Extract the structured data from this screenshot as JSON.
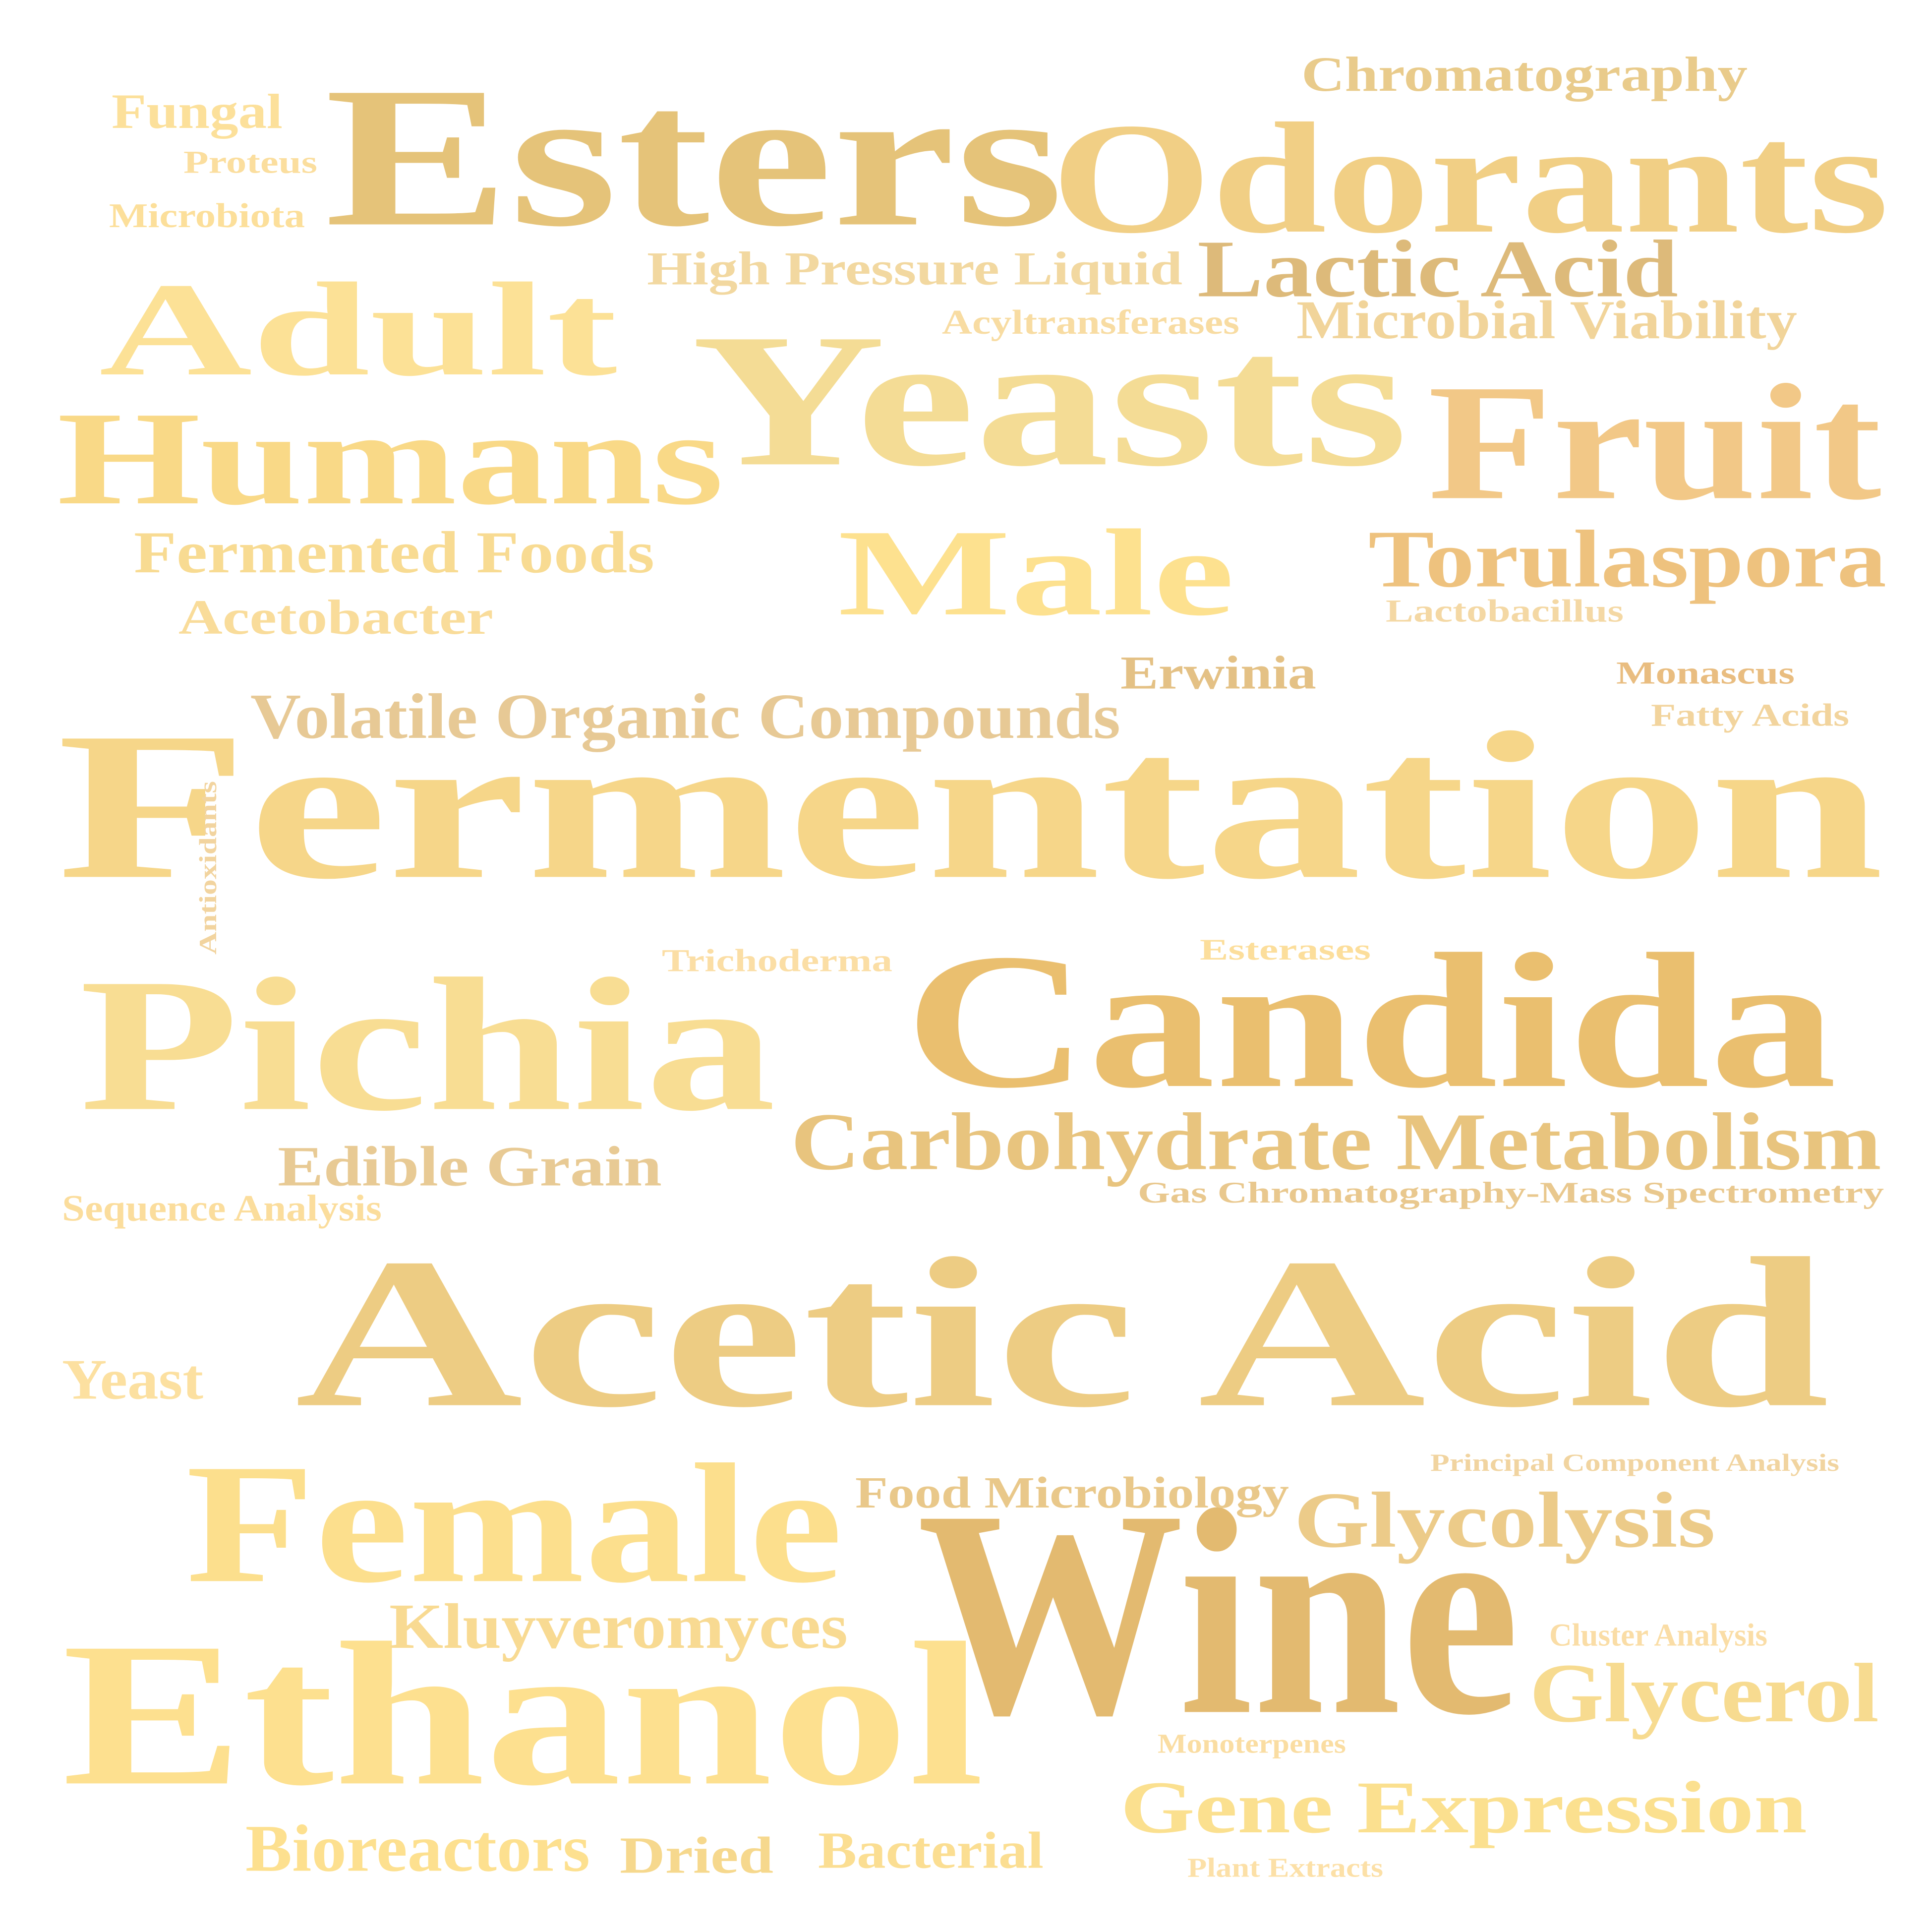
{
  "words": [
    {
      "text": "Fermentation",
      "color": "#F6D689"
    },
    {
      "text": "Acetic Acid",
      "color": "#EDCC83"
    },
    {
      "text": "Candida",
      "color": "#EABF6F"
    },
    {
      "text": "Yeasts",
      "color": "#F4DC95"
    },
    {
      "text": "Odorants",
      "color": "#F1CF85"
    },
    {
      "text": "Esters",
      "color": "#E5C379"
    },
    {
      "text": "Ethanol",
      "color": "#FDE08F"
    },
    {
      "text": "Wine",
      "color": "#E3BA70"
    },
    {
      "text": "Pichia",
      "color": "#F8DD93"
    },
    {
      "text": "Fruit",
      "color": "#F2C887"
    },
    {
      "text": "Female",
      "color": "#FCDF8D"
    },
    {
      "text": "Humans",
      "color": "#F9D987"
    },
    {
      "text": "Adult",
      "color": "#FCE196"
    },
    {
      "text": "Male",
      "color": "#FDE18F"
    },
    {
      "text": "Carbohydrate Metabolism",
      "color": "#E8C47E"
    },
    {
      "text": "Torulaspora",
      "color": "#EEC27E"
    },
    {
      "text": "Lactic Acid",
      "color": "#DDBA7A"
    },
    {
      "text": "Gene Expression",
      "color": "#FBE08F"
    },
    {
      "text": "Glycerol",
      "color": "#F7DB90"
    },
    {
      "text": "Glycolysis",
      "color": "#ECCB89"
    },
    {
      "text": "Volatile Organic Compounds",
      "color": "#E7C995"
    },
    {
      "text": "Kluyveromyces",
      "color": "#F8DA92"
    },
    {
      "text": "Fermented Foods",
      "color": "#F8DB92"
    },
    {
      "text": "Edible Grain",
      "color": "#E8CA94"
    },
    {
      "text": "Microbial Viability",
      "color": "#F1D49A"
    },
    {
      "text": "Chromatography",
      "color": "#E9CB8B"
    },
    {
      "text": "High Pressure Liquid",
      "color": "#F2D8A0"
    },
    {
      "text": "Acetobacter",
      "color": "#F9DC9A"
    },
    {
      "text": "Bioreactors",
      "color": "#FDE08F"
    },
    {
      "text": "Bacterial",
      "color": "#FBDE92"
    },
    {
      "text": "Dried",
      "color": "#F6D88D"
    },
    {
      "text": "Food Microbiology",
      "color": "#E9C88A"
    },
    {
      "text": "Erwinia",
      "color": "#E4C185"
    },
    {
      "text": "Fungal",
      "color": "#FCE09A"
    },
    {
      "text": "Yeast",
      "color": "#FCE0A0"
    },
    {
      "text": "Gas Chromatography-Mass Spectrometry",
      "color": "#E9C88E"
    },
    {
      "text": "Acyltransferases",
      "color": "#F8DCA2"
    },
    {
      "text": "Trichoderma",
      "color": "#FBDEA5"
    },
    {
      "text": "Esterases",
      "color": "#FCDE9B"
    },
    {
      "text": "Monascus",
      "color": "#E9BD80"
    },
    {
      "text": "Fatty Acids",
      "color": "#F2D49D"
    },
    {
      "text": "Lactobacillus",
      "color": "#F4D8A4"
    },
    {
      "text": "Microbiota",
      "color": "#FCDF9A"
    },
    {
      "text": "Proteus",
      "color": "#FBDE9E"
    },
    {
      "text": "Sequence Analysis",
      "color": "#FBDD9C"
    },
    {
      "text": "Principal Component Analysis",
      "color": "#F1D4A0"
    },
    {
      "text": "Cluster Analysis",
      "color": "#FADDA6"
    },
    {
      "text": "Monoterpenes",
      "color": "#FADDA2"
    },
    {
      "text": "Plant Extracts",
      "color": "#FCE0A7"
    },
    {
      "text": "Antioxidants",
      "color": "#F2D49F"
    }
  ]
}
